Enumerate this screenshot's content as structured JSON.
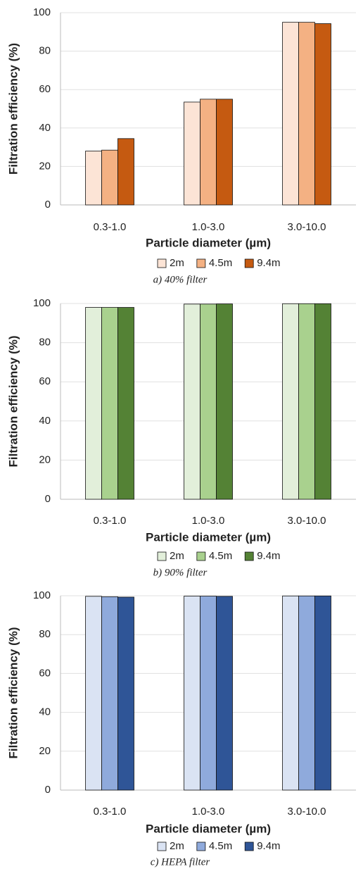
{
  "chart_data": [
    {
      "type": "bar",
      "ylabel": "Filtration efficiency (%)",
      "xlabel": "Particle diameter (µm)",
      "caption": "a) 40% filter",
      "categories": [
        "0.3-1.0",
        "1.0-3.0",
        "3.0-10.0"
      ],
      "series": [
        {
          "name": "2m",
          "color": "#fce4d6",
          "values": [
            28,
            53.5,
            95
          ]
        },
        {
          "name": "4.5m",
          "color": "#f4b183",
          "values": [
            28.5,
            55,
            95
          ]
        },
        {
          "name": "9.4m",
          "color": "#c55a11",
          "values": [
            34.5,
            55,
            94.3
          ]
        }
      ],
      "ylim": [
        0,
        100
      ],
      "yticks": [
        0,
        20,
        40,
        60,
        80,
        100
      ],
      "grid": true
    },
    {
      "type": "bar",
      "ylabel": "Filtration efficiency (%)",
      "xlabel": "Particle diameter (µm)",
      "caption": "b) 90% filter",
      "categories": [
        "0.3-1.0",
        "1.0-3.0",
        "3.0-10.0"
      ],
      "series": [
        {
          "name": "2m",
          "color": "#e2efda",
          "values": [
            98,
            99.7,
            99.9
          ]
        },
        {
          "name": "4.5m",
          "color": "#a9d18e",
          "values": [
            98,
            99.7,
            99.9
          ]
        },
        {
          "name": "9.4m",
          "color": "#548235",
          "values": [
            98,
            99.8,
            99.9
          ]
        }
      ],
      "ylim": [
        0,
        100
      ],
      "yticks": [
        0,
        20,
        40,
        60,
        80,
        100
      ],
      "grid": true
    },
    {
      "type": "bar",
      "ylabel": "Filtration efficiency (%)",
      "xlabel": "Particle diameter (µm)",
      "caption": "c) HEPA filter",
      "categories": [
        "0.3-1.0",
        "1.0-3.0",
        "3.0-10.0"
      ],
      "series": [
        {
          "name": "2m",
          "color": "#dae3f3",
          "values": [
            99.7,
            99.8,
            99.9
          ]
        },
        {
          "name": "4.5m",
          "color": "#8faadc",
          "values": [
            99.5,
            99.8,
            99.9
          ]
        },
        {
          "name": "9.4m",
          "color": "#2f5597",
          "values": [
            99.3,
            99.7,
            99.9
          ]
        }
      ],
      "ylim": [
        0,
        100
      ],
      "yticks": [
        0,
        20,
        40,
        60,
        80,
        100
      ],
      "grid": true
    }
  ]
}
